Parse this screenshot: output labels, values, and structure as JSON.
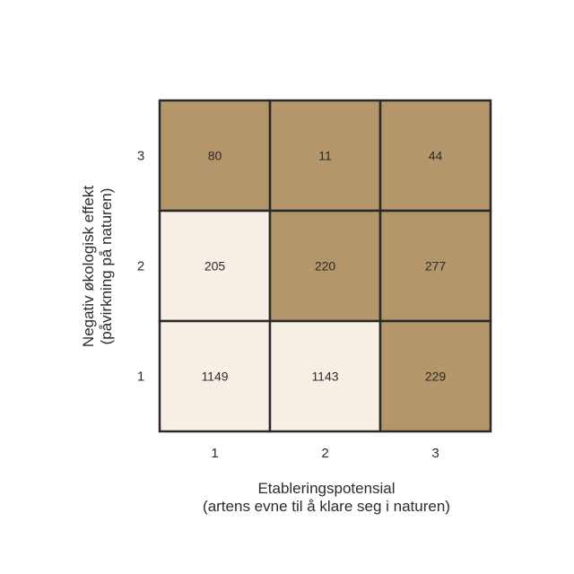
{
  "chart_data": {
    "type": "heatmap",
    "x_categories": [
      "1",
      "2",
      "3"
    ],
    "y_categories": [
      "1",
      "2",
      "3"
    ],
    "xlabel": [
      "Etableringspotensial",
      "(artens evne til å klare seg i naturen)"
    ],
    "ylabel": [
      "Negativ økologisk effekt",
      "(påvirkning på naturen)"
    ],
    "grid": [
      {
        "x": "1",
        "y": "3",
        "value": 80,
        "shaded": true
      },
      {
        "x": "2",
        "y": "3",
        "value": 11,
        "shaded": true
      },
      {
        "x": "3",
        "y": "3",
        "value": 44,
        "shaded": true
      },
      {
        "x": "1",
        "y": "2",
        "value": 205,
        "shaded": false
      },
      {
        "x": "2",
        "y": "2",
        "value": 220,
        "shaded": true
      },
      {
        "x": "3",
        "y": "2",
        "value": 277,
        "shaded": true
      },
      {
        "x": "1",
        "y": "1",
        "value": 1149,
        "shaded": false
      },
      {
        "x": "2",
        "y": "1",
        "value": 1143,
        "shaded": false
      },
      {
        "x": "3",
        "y": "1",
        "value": 229,
        "shaded": true
      }
    ],
    "colors": {
      "shaded": "#b39669",
      "light": "#f8efe4",
      "border": "#2a2a2a"
    }
  }
}
